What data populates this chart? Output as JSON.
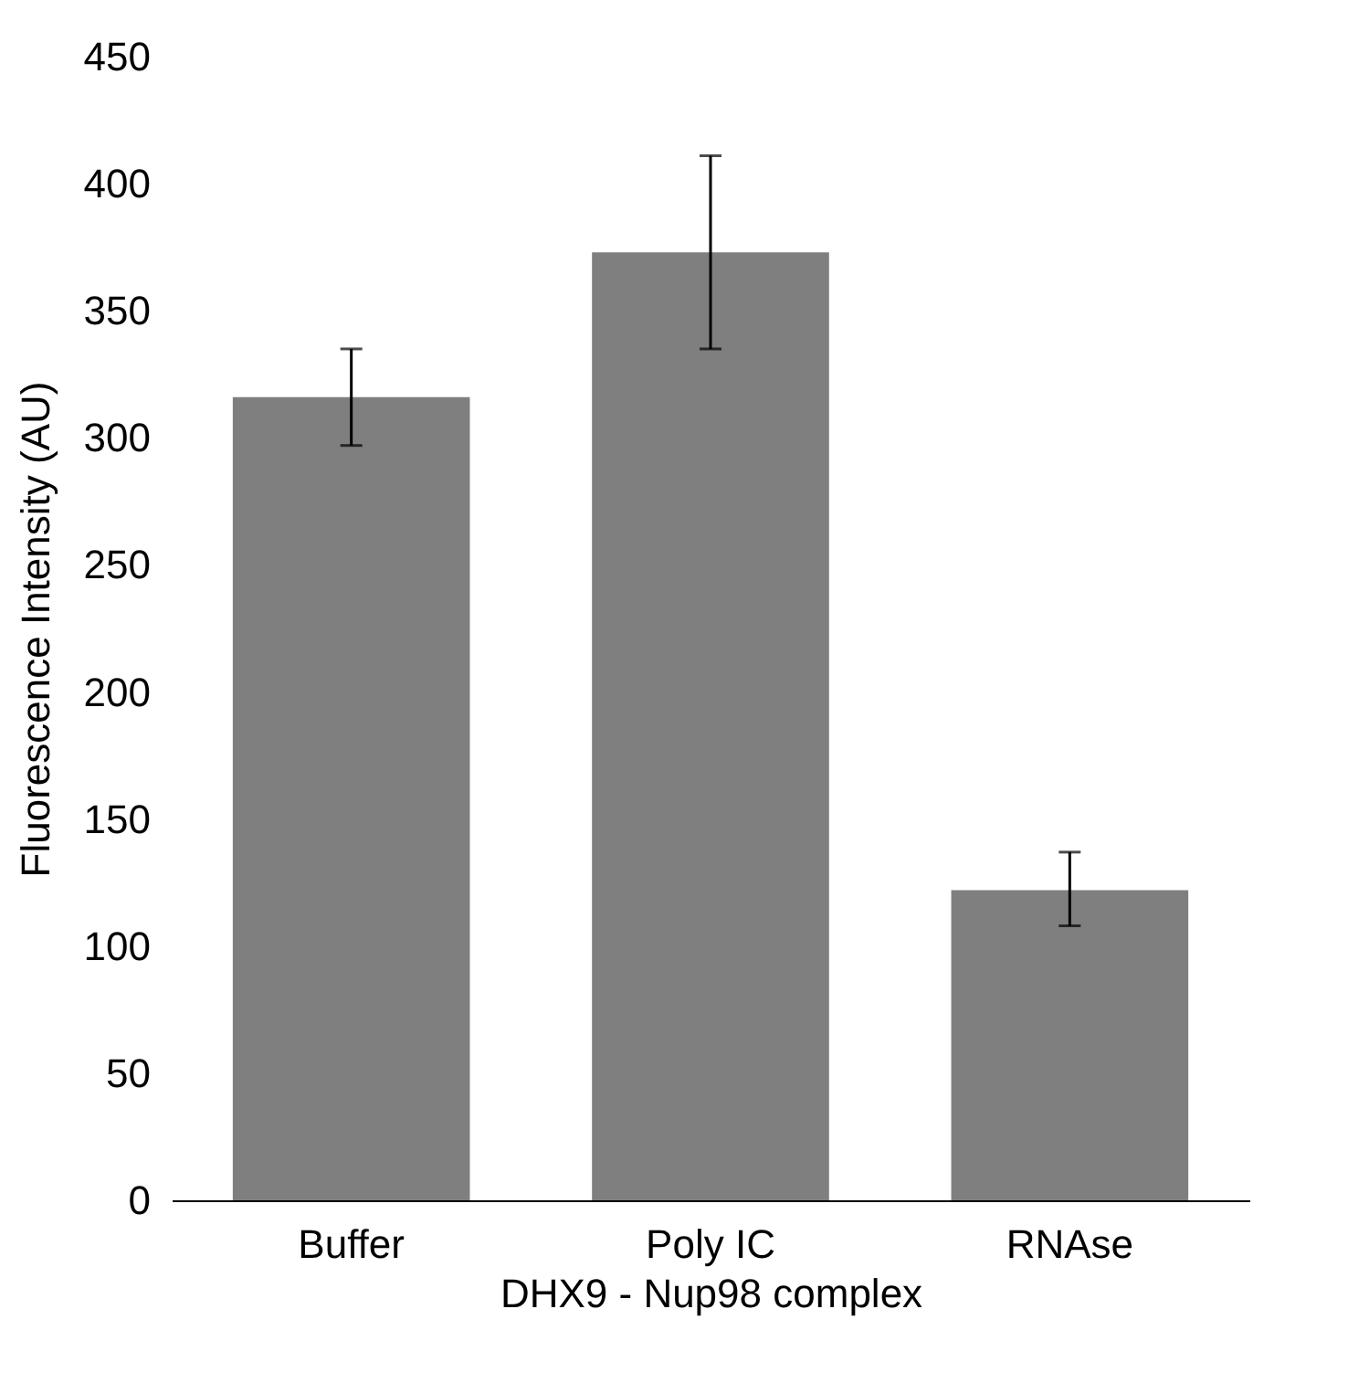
{
  "chart_data": {
    "type": "bar",
    "xlabel": "DHX9 - Nup98 complex",
    "ylabel": "Fluorescence Intensity (AU)",
    "categories": [
      "Buffer",
      "Poly IC",
      "RNAse"
    ],
    "values": [
      316,
      373,
      122
    ],
    "errors": [
      [
        297,
        335
      ],
      [
        335,
        411
      ],
      [
        108,
        137
      ]
    ],
    "color": "#7f7f7f",
    "ylim": [
      0,
      450
    ],
    "yticks": [
      0,
      50,
      100,
      150,
      200,
      250,
      300,
      350,
      400,
      450
    ],
    "grid": false
  }
}
